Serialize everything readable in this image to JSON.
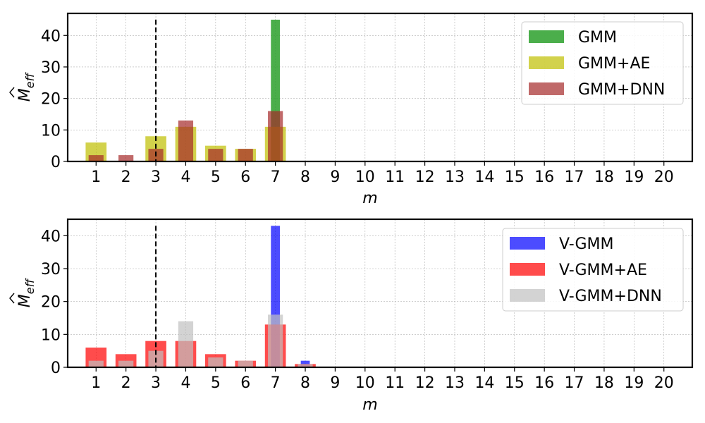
{
  "chart_data": [
    {
      "type": "bar",
      "xlabel": "m",
      "ylabel": "M̂eff",
      "ylabel_main": "M",
      "ylabel_sub": "eff",
      "categories": [
        1,
        2,
        3,
        4,
        5,
        6,
        7,
        8,
        9,
        10,
        11,
        12,
        13,
        14,
        15,
        16,
        17,
        18,
        19,
        20
      ],
      "ylim": [
        0,
        47
      ],
      "yticks": [
        0,
        10,
        20,
        30,
        40
      ],
      "grid": true,
      "legend_position": "top-right",
      "reference_line": {
        "x": 3,
        "style": "dashed",
        "ymax": 45
      },
      "series": [
        {
          "name": "GMM",
          "color": "#2ca02c",
          "opacity": 0.85,
          "width": 0.3,
          "values": [
            0,
            0,
            0,
            0,
            0,
            0,
            45,
            0,
            0,
            0,
            0,
            0,
            0,
            0,
            0,
            0,
            0,
            0,
            0,
            0
          ]
        },
        {
          "name": "GMM+AE",
          "color": "#bfbf00",
          "opacity": 0.7,
          "width": 0.7,
          "values": [
            6,
            0,
            8,
            11,
            5,
            4,
            11,
            0,
            0,
            0,
            0,
            0,
            0,
            0,
            0,
            0,
            0,
            0,
            0,
            0
          ]
        },
        {
          "name": "GMM+DNN",
          "color": "#a52a2a",
          "opacity": 0.7,
          "width": 0.5,
          "values": [
            2,
            2,
            4,
            13,
            4,
            4,
            16,
            0,
            0,
            0,
            0,
            0,
            0,
            0,
            0,
            0,
            0,
            0,
            0,
            0
          ]
        }
      ]
    },
    {
      "type": "bar",
      "xlabel": "m",
      "ylabel": "M̂eff",
      "ylabel_main": "M",
      "ylabel_sub": "eff",
      "categories": [
        1,
        2,
        3,
        4,
        5,
        6,
        7,
        8,
        9,
        10,
        11,
        12,
        13,
        14,
        15,
        16,
        17,
        18,
        19,
        20
      ],
      "ylim": [
        0,
        45
      ],
      "yticks": [
        0,
        10,
        20,
        30,
        40
      ],
      "grid": true,
      "legend_position": "top-right",
      "reference_line": {
        "x": 3,
        "style": "dashed",
        "ymax": 43
      },
      "series": [
        {
          "name": "V-GMM",
          "color": "#0000ff",
          "opacity": 0.7,
          "width": 0.3,
          "values": [
            0,
            0,
            0,
            0,
            0,
            0,
            43,
            2,
            0,
            0,
            0,
            0,
            0,
            0,
            0,
            0,
            0,
            0,
            0,
            0
          ]
        },
        {
          "name": "V-GMM+AE",
          "color": "#ff0000",
          "opacity": 0.7,
          "width": 0.7,
          "values": [
            6,
            4,
            8,
            8,
            4,
            2,
            13,
            1,
            0,
            0,
            0,
            0,
            0,
            0,
            0,
            0,
            0,
            0,
            0,
            0
          ]
        },
        {
          "name": "V-GMM+DNN",
          "color": "#c0c0c0",
          "opacity": 0.7,
          "width": 0.5,
          "values": [
            2,
            2,
            5,
            14,
            3,
            2,
            16,
            1,
            0,
            0,
            0,
            0,
            0,
            0,
            0,
            0,
            0,
            0,
            0,
            0
          ]
        }
      ]
    }
  ]
}
